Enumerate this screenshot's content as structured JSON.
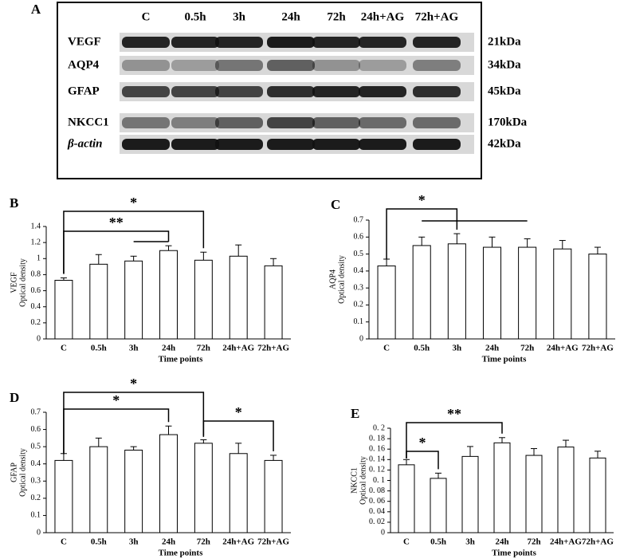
{
  "blot": {
    "panel": "A",
    "lanes": [
      "C",
      "0.5h",
      "3h",
      "24h",
      "72h",
      "24h+AG",
      "72h+AG"
    ],
    "proteins": [
      "VEGF",
      "AQP4",
      "GFAP",
      "NKCC1",
      "β-actin"
    ],
    "weights": [
      "21kDa",
      "34kDa",
      "45kDa",
      "170kDa",
      "42kDa"
    ]
  },
  "chart_data": [
    {
      "type": "bar",
      "panel": "B",
      "ylabel": [
        "VEGF",
        "Optical density"
      ],
      "xlabel": "Time points",
      "categories": [
        "C",
        "0.5h",
        "3h",
        "24h",
        "72h",
        "24h+AG",
        "72h+AG"
      ],
      "values": [
        0.73,
        0.93,
        0.97,
        1.1,
        0.98,
        1.03,
        0.91
      ],
      "errors": [
        0.03,
        0.12,
        0.06,
        0.06,
        0.1,
        0.14,
        0.09
      ],
      "ylim": [
        0,
        1.4
      ],
      "yticks": [
        0,
        0.2,
        0.4,
        0.6,
        0.8,
        1,
        1.2,
        1.4
      ],
      "annotations": [
        "*",
        "**"
      ],
      "color": "#ffffff"
    },
    {
      "type": "bar",
      "panel": "C",
      "ylabel": [
        "AQP4",
        "Optical density"
      ],
      "xlabel": "Time points",
      "categories": [
        "C",
        "0.5h",
        "3h",
        "24h",
        "72h",
        "24h+AG",
        "72h+AG"
      ],
      "values": [
        0.43,
        0.55,
        0.56,
        0.54,
        0.54,
        0.53,
        0.5
      ],
      "errors": [
        0.04,
        0.05,
        0.06,
        0.06,
        0.05,
        0.05,
        0.04
      ],
      "ylim": [
        0,
        0.7
      ],
      "yticks": [
        0,
        0.1,
        0.2,
        0.3,
        0.4,
        0.5,
        0.6,
        0.7
      ],
      "annotations": [
        "*"
      ],
      "color": "#ffffff"
    },
    {
      "type": "bar",
      "panel": "D",
      "ylabel": [
        "GFAP",
        "Optical density"
      ],
      "xlabel": "Time points",
      "categories": [
        "C",
        "0.5h",
        "3h",
        "24h",
        "72h",
        "24h+AG",
        "72h+AG"
      ],
      "values": [
        0.42,
        0.5,
        0.48,
        0.57,
        0.52,
        0.46,
        0.42
      ],
      "errors": [
        0.04,
        0.05,
        0.02,
        0.05,
        0.02,
        0.06,
        0.03
      ],
      "ylim": [
        0,
        0.7
      ],
      "yticks": [
        0,
        0.1,
        0.2,
        0.3,
        0.4,
        0.5,
        0.6,
        0.7
      ],
      "annotations": [
        "*",
        "*",
        "*"
      ],
      "color": "#ffffff"
    },
    {
      "type": "bar",
      "panel": "E",
      "ylabel": [
        "NKCC1",
        "Optical density"
      ],
      "xlabel": "Time points",
      "categories": [
        "C",
        "0.5h",
        "3h",
        "24h",
        "72h",
        "24h+AG",
        "72h+AG"
      ],
      "values": [
        0.13,
        0.104,
        0.146,
        0.172,
        0.148,
        0.164,
        0.143
      ],
      "errors": [
        0.01,
        0.01,
        0.019,
        0.01,
        0.013,
        0.013,
        0.013
      ],
      "ylim": [
        0,
        0.2
      ],
      "yticks": [
        0,
        {
          "value": 0.02,
          "label": "0. 02"
        },
        {
          "value": 0.04,
          "label": "0. 04"
        },
        {
          "value": 0.06,
          "label": "0. 06"
        },
        {
          "value": 0.08,
          "label": "0. 08"
        },
        {
          "value": 0.1,
          "label": "0. 1"
        },
        {
          "value": 0.12,
          "label": "0. 12"
        },
        {
          "value": 0.14,
          "label": "0. 14"
        },
        {
          "value": 0.16,
          "label": "0. 16"
        },
        {
          "value": 0.18,
          "label": "0. 18"
        },
        {
          "value": 0.2,
          "label": "0. 2"
        }
      ],
      "annotations": [
        "**",
        "*"
      ],
      "color": "#ffffff"
    }
  ]
}
